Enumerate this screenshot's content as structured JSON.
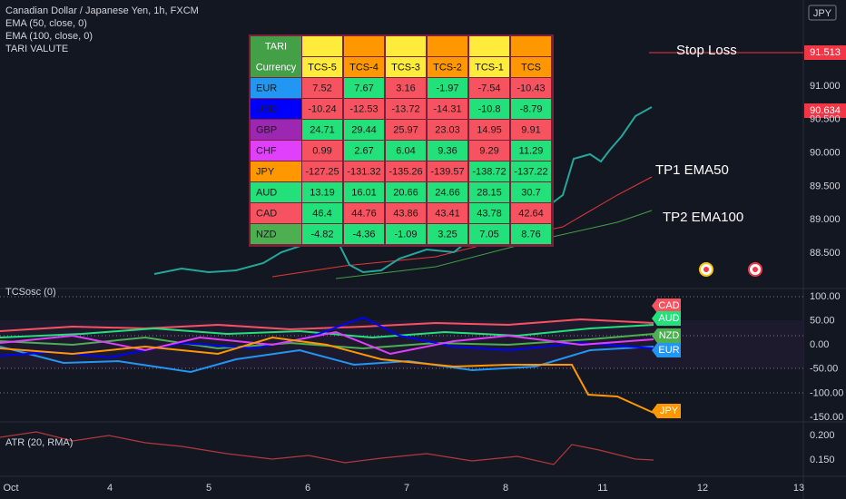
{
  "header": {
    "title": "Canadian Dollar / Japanese Yen, 1h, FXCM",
    "indicators": [
      "EMA (50, close, 0)",
      "EMA (100, close, 0)",
      "TARI VALUTE"
    ]
  },
  "price_axis": {
    "currency": "JPY",
    "ticks": [
      "91.000",
      "90.500",
      "90.000",
      "89.500",
      "89.000",
      "88.500"
    ],
    "stop_loss_tag": "91.513",
    "last_price_tag": "90.634"
  },
  "annotations": {
    "stop_loss": "Stop Loss",
    "tp1": "TP1 EMA50",
    "tp2": "TP2 EMA100"
  },
  "table": {
    "title": "TARI",
    "title_color": "#43a047",
    "columns": [
      "Currency",
      "TCS-5",
      "TCS-4",
      "TCS-3",
      "TCS-2",
      "TCS-1",
      "TCS"
    ],
    "column_colors": [
      "#43a047",
      "#ffeb3b",
      "#ff9800",
      "#ffeb3b",
      "#ff9800",
      "#ffeb3b",
      "#ff9800"
    ],
    "rows": [
      {
        "currency": "EUR",
        "color": "#2196f3",
        "values": [
          7.52,
          7.67,
          3.16,
          -1.97,
          -7.54,
          -10.43
        ],
        "cell_colors": [
          "#f7525f",
          "#22e07a",
          "#f7525f",
          "#22e07a",
          "#f7525f",
          "#f7525f"
        ]
      },
      {
        "currency": "USD",
        "color": "#0000ff",
        "values": [
          -10.24,
          -12.53,
          -13.72,
          -14.31,
          -10.8,
          -8.79
        ],
        "cell_colors": [
          "#f7525f",
          "#f7525f",
          "#f7525f",
          "#f7525f",
          "#22e07a",
          "#22e07a"
        ]
      },
      {
        "currency": "GBP",
        "color": "#9c27b0",
        "values": [
          24.71,
          29.44,
          25.97,
          23.03,
          14.95,
          9.91
        ],
        "cell_colors": [
          "#22e07a",
          "#22e07a",
          "#f7525f",
          "#f7525f",
          "#f7525f",
          "#f7525f"
        ]
      },
      {
        "currency": "CHF",
        "color": "#e040fb",
        "values": [
          0.99,
          2.67,
          6.04,
          9.36,
          9.29,
          11.29
        ],
        "cell_colors": [
          "#f7525f",
          "#22e07a",
          "#22e07a",
          "#22e07a",
          "#f7525f",
          "#22e07a"
        ]
      },
      {
        "currency": "JPY",
        "color": "#ff9800",
        "values": [
          -127.25,
          -131.32,
          -135.26,
          -139.57,
          -138.72,
          -137.22
        ],
        "cell_colors": [
          "#f7525f",
          "#f7525f",
          "#f7525f",
          "#f7525f",
          "#22e07a",
          "#22e07a"
        ]
      },
      {
        "currency": "AUD",
        "color": "#22e07a",
        "values": [
          13.19,
          16.01,
          20.66,
          24.66,
          28.15,
          30.7
        ],
        "cell_colors": [
          "#22e07a",
          "#22e07a",
          "#22e07a",
          "#22e07a",
          "#22e07a",
          "#22e07a"
        ]
      },
      {
        "currency": "CAD",
        "color": "#f7525f",
        "values": [
          46.4,
          44.76,
          43.86,
          43.41,
          43.78,
          42.64
        ],
        "cell_colors": [
          "#22e07a",
          "#f7525f",
          "#f7525f",
          "#f7525f",
          "#22e07a",
          "#f7525f"
        ]
      },
      {
        "currency": "NZD",
        "color": "#4caf50",
        "values": [
          -4.82,
          -4.36,
          -1.09,
          3.25,
          7.05,
          8.76
        ],
        "cell_colors": [
          "#22e07a",
          "#22e07a",
          "#22e07a",
          "#22e07a",
          "#22e07a",
          "#22e07a"
        ]
      }
    ]
  },
  "oscillator": {
    "label": "TCSosc (0)",
    "ticks": [
      "100.00",
      "50.00",
      "0.00",
      "-50.00",
      "-100.00",
      "-150.00"
    ],
    "tags": [
      {
        "label": "CAD",
        "color": "#f7525f"
      },
      {
        "label": "AUD",
        "color": "#22e07a"
      },
      {
        "label": "NZD",
        "color": "#4caf50"
      },
      {
        "label": "EUR",
        "color": "#2196f3"
      },
      {
        "label": "JPY",
        "color": "#ff9800"
      }
    ]
  },
  "atr": {
    "label": "ATR (20, RMA)",
    "ticks": [
      "0.200",
      "0.150"
    ]
  },
  "time_axis": {
    "labels": [
      "Oct",
      "4",
      "5",
      "6",
      "7",
      "8",
      "11",
      "12",
      "13"
    ]
  }
}
